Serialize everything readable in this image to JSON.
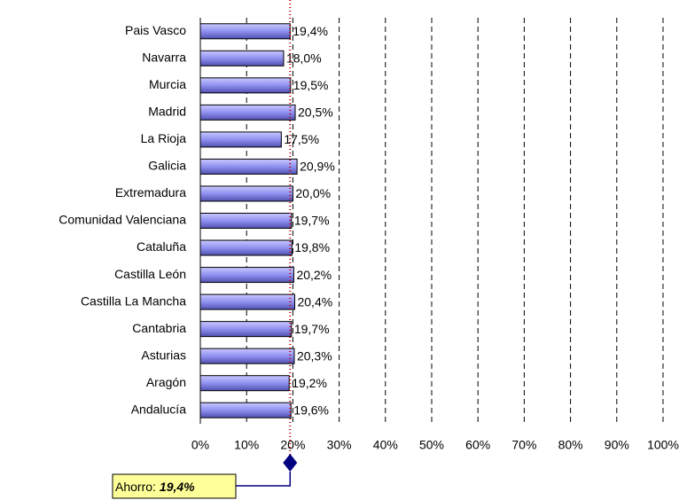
{
  "chart_data": {
    "type": "bar",
    "orientation": "horizontal",
    "categories": [
      "Pais Vasco",
      "Navarra",
      "Murcia",
      "Madrid",
      "La Rioja",
      "Galicia",
      "Extremadura",
      "Comunidad Valenciana",
      "Cataluña",
      "Castilla León",
      "Castilla La Mancha",
      "Cantabria",
      "Asturias",
      "Aragón",
      "Andalucía"
    ],
    "values": [
      19.4,
      18.0,
      19.5,
      20.5,
      17.5,
      20.9,
      20.0,
      19.7,
      19.8,
      20.2,
      20.4,
      19.7,
      20.3,
      19.2,
      19.6
    ],
    "value_labels": [
      "19,4%",
      "18,0%",
      "19,5%",
      "20,5%",
      "17,5%",
      "20,9%",
      "20,0%",
      "19,7%",
      "19,8%",
      "20,2%",
      "20,4%",
      "19,7%",
      "20,3%",
      "19,2%",
      "19,6%"
    ],
    "color": "#8c8cf0",
    "xlim": [
      0,
      100
    ],
    "xticks": [
      {
        "value": 0,
        "label": "0%"
      },
      {
        "value": 10,
        "label": "10%"
      },
      {
        "value": 20,
        "label": "20%"
      },
      {
        "value": 30,
        "label": "30%"
      },
      {
        "value": 40,
        "label": "40%"
      },
      {
        "value": 50,
        "label": "50%"
      },
      {
        "value": 60,
        "label": "60%"
      },
      {
        "value": 70,
        "label": "70%"
      },
      {
        "value": 80,
        "label": "80%"
      },
      {
        "value": 90,
        "label": "90%"
      },
      {
        "value": 100,
        "label": "100%"
      }
    ],
    "grid": true,
    "reference_line": {
      "value": 19.4,
      "label": "Ahorro:",
      "value_label": "19,4%",
      "color": "#c00000"
    }
  }
}
